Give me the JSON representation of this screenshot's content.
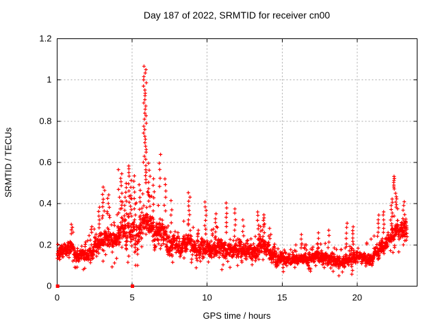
{
  "chart_data": {
    "type": "scatter",
    "title": "Day 187 of 2022, SRMTID for receiver cn00",
    "xlabel": "GPS time / hours",
    "ylabel": "SRMTID / TECUs",
    "xlim": [
      0,
      24
    ],
    "ylim": [
      0,
      1.2
    ],
    "xtick_labels": [
      "0",
      "5",
      "10",
      "15",
      "20"
    ],
    "xtick_values": [
      0,
      5,
      10,
      15,
      20
    ],
    "ytick_labels": [
      "0",
      "0.2",
      "0.4",
      "0.6",
      "0.8",
      "1",
      "1.2"
    ],
    "ytick_values": [
      0,
      0.2,
      0.4,
      0.6,
      0.8,
      1.0,
      1.2
    ],
    "grid": "dotted",
    "legend": "none",
    "marker": "plus",
    "marker_color": "#ff0000",
    "grid_color": "#a8a8a8",
    "axis_color": "#000000",
    "background_color": "#ffffff",
    "peak_value": 1.08,
    "peak_hour": 5.9,
    "data_end_hour": 23.35,
    "sampling": {
      "start_hour": 0.02,
      "end_hour": 23.33,
      "points_per_hour": 110,
      "seed": 20220187
    },
    "band_profile": [
      [
        0.25,
        0.09,
        0.24
      ],
      [
        0.75,
        0.1,
        0.27
      ],
      [
        1.25,
        0.09,
        0.23
      ],
      [
        1.75,
        0.08,
        0.24
      ],
      [
        2.25,
        0.07,
        0.27
      ],
      [
        2.75,
        0.1,
        0.3
      ],
      [
        3.25,
        0.11,
        0.36
      ],
      [
        3.75,
        0.09,
        0.32
      ],
      [
        4.25,
        0.11,
        0.4
      ],
      [
        4.75,
        0.11,
        0.44
      ],
      [
        5.25,
        0.09,
        0.4
      ],
      [
        5.75,
        0.14,
        0.48
      ],
      [
        6.25,
        0.12,
        0.44
      ],
      [
        6.75,
        0.1,
        0.4
      ],
      [
        7.25,
        0.1,
        0.38
      ],
      [
        7.75,
        0.08,
        0.33
      ],
      [
        8.25,
        0.08,
        0.3
      ],
      [
        8.75,
        0.1,
        0.34
      ],
      [
        9.25,
        0.08,
        0.28
      ],
      [
        9.75,
        0.08,
        0.3
      ],
      [
        10.25,
        0.06,
        0.27
      ],
      [
        10.75,
        0.08,
        0.29
      ],
      [
        11.25,
        0.08,
        0.28
      ],
      [
        11.75,
        0.08,
        0.27
      ],
      [
        12.25,
        0.08,
        0.26
      ],
      [
        12.75,
        0.07,
        0.25
      ],
      [
        13.25,
        0.08,
        0.27
      ],
      [
        13.75,
        0.1,
        0.3
      ],
      [
        14.25,
        0.08,
        0.24
      ],
      [
        14.75,
        0.07,
        0.2
      ],
      [
        15.25,
        0.07,
        0.19
      ],
      [
        15.75,
        0.07,
        0.2
      ],
      [
        16.25,
        0.07,
        0.2
      ],
      [
        16.75,
        0.07,
        0.2
      ],
      [
        17.25,
        0.08,
        0.21
      ],
      [
        17.75,
        0.07,
        0.21
      ],
      [
        18.25,
        0.06,
        0.2
      ],
      [
        18.75,
        0.05,
        0.17
      ],
      [
        19.25,
        0.05,
        0.19
      ],
      [
        19.75,
        0.06,
        0.21
      ],
      [
        20.25,
        0.07,
        0.21
      ],
      [
        20.75,
        0.04,
        0.21
      ],
      [
        21.25,
        0.08,
        0.26
      ],
      [
        21.75,
        0.1,
        0.3
      ],
      [
        22.25,
        0.12,
        0.34
      ],
      [
        22.75,
        0.14,
        0.38
      ],
      [
        23.25,
        0.15,
        0.4
      ]
    ],
    "spikes": [
      [
        1.0,
        4,
        0.26,
        0.31,
        0.08
      ],
      [
        2.3,
        3,
        0.26,
        0.3,
        0.05
      ],
      [
        2.8,
        5,
        0.3,
        0.4,
        0.08
      ],
      [
        3.1,
        8,
        0.34,
        0.5,
        0.1
      ],
      [
        3.4,
        6,
        0.34,
        0.46,
        0.08
      ],
      [
        4.2,
        12,
        0.35,
        0.58,
        0.12
      ],
      [
        4.55,
        8,
        0.34,
        0.52,
        0.08
      ],
      [
        4.85,
        14,
        0.35,
        0.6,
        0.1
      ],
      [
        5.15,
        8,
        0.34,
        0.56,
        0.08
      ],
      [
        5.5,
        6,
        0.34,
        0.52,
        0.06
      ],
      [
        5.85,
        36,
        0.5,
        1.08,
        0.1
      ],
      [
        6.15,
        8,
        0.38,
        0.62,
        0.07
      ],
      [
        6.45,
        6,
        0.36,
        0.55,
        0.06
      ],
      [
        6.85,
        5,
        0.48,
        0.67,
        0.05
      ],
      [
        7.2,
        6,
        0.36,
        0.55,
        0.06
      ],
      [
        7.6,
        4,
        0.3,
        0.44,
        0.05
      ],
      [
        8.8,
        8,
        0.3,
        0.47,
        0.07
      ],
      [
        9.9,
        7,
        0.27,
        0.43,
        0.06
      ],
      [
        10.6,
        6,
        0.24,
        0.37,
        0.05
      ],
      [
        11.3,
        7,
        0.26,
        0.42,
        0.06
      ],
      [
        11.85,
        6,
        0.24,
        0.4,
        0.05
      ],
      [
        12.4,
        4,
        0.24,
        0.34,
        0.05
      ],
      [
        13.4,
        6,
        0.25,
        0.38,
        0.06
      ],
      [
        13.75,
        8,
        0.24,
        0.36,
        0.09
      ],
      [
        14.2,
        4,
        0.2,
        0.3,
        0.05
      ],
      [
        16.3,
        4,
        0.18,
        0.27,
        0.04
      ],
      [
        17.4,
        4,
        0.18,
        0.28,
        0.04
      ],
      [
        18.1,
        4,
        0.18,
        0.3,
        0.04
      ],
      [
        19.3,
        5,
        0.2,
        0.33,
        0.04
      ],
      [
        19.7,
        6,
        0.2,
        0.3,
        0.05
      ],
      [
        21.4,
        6,
        0.24,
        0.36,
        0.06
      ],
      [
        21.8,
        6,
        0.26,
        0.38,
        0.06
      ],
      [
        22.3,
        8,
        0.3,
        0.44,
        0.07
      ],
      [
        22.47,
        7,
        0.47,
        0.54,
        0.03
      ],
      [
        22.6,
        6,
        0.38,
        0.46,
        0.05
      ],
      [
        23.1,
        8,
        0.26,
        0.43,
        0.08
      ]
    ],
    "zero_markers": [
      {
        "t": 0.03,
        "v": 0
      },
      {
        "t": 5.02,
        "v": 0
      }
    ]
  }
}
